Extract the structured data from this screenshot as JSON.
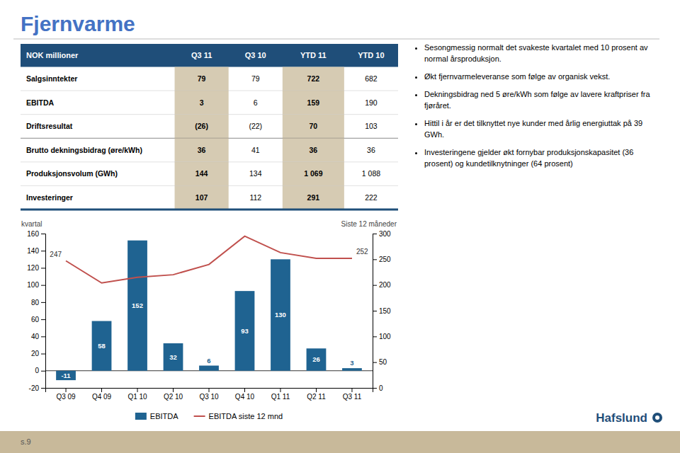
{
  "title": "Fjernvarme",
  "title_color": "#4472c4",
  "background_color": "#ffffff",
  "table": {
    "header_color": "#1F4E79",
    "header_text_color": "#ffffff",
    "shaded_color": "#C8B99A",
    "shaded_cols": [
      1,
      3
    ],
    "separator_after_row": 2,
    "col_headers": [
      "NOK millioner",
      "Q3 11",
      "Q3 10",
      "YTD 11",
      "YTD 10"
    ],
    "row_labels": [
      "Salgsinntekter",
      "EBITDA",
      "Driftsresultat",
      "Brutto dekningsbidrag (øre/kWh)",
      "Produksjonsvolum (GWh)",
      "Investeringer"
    ],
    "data": [
      [
        "79",
        "79",
        "722",
        "682"
      ],
      [
        "3",
        "6",
        "159",
        "190"
      ],
      [
        "(26)",
        "(22)",
        "70",
        "103"
      ],
      [
        "36",
        "41",
        "36",
        "36"
      ],
      [
        "144",
        "134",
        "1 069",
        "1 088"
      ],
      [
        "107",
        "112",
        "291",
        "222"
      ]
    ]
  },
  "bullet_points": [
    "Sesongmessig normalt det svakeste kvartalet med 10 prosent av normal årsproduksjon.",
    "Økt fjernvarmeleveranse som følge av organisk vekst.",
    "Dekningsbidrag ned 5 øre/kWh som følge av lavere kraftpriser fra fjøråret.",
    "Hittil i år er det tilknyttet nye kunder med årlig energiuttak på 39 GWh.",
    "Investeringene gjelder økt fornybar produksjonskapasitet (36 prosent) og kundetilknytninger (64 prosent)"
  ],
  "logo_text": "Hafslund",
  "logo_color": "#1F4E79",
  "footer_text": "s.9",
  "footer_color": "#C8B99A",
  "chart_data": {
    "type": "bar",
    "categories": [
      "Q3 09",
      "Q4 09",
      "Q1 10",
      "Q2 10",
      "Q3 10",
      "Q4 10",
      "Q1 11",
      "Q2 11",
      "Q3 11"
    ],
    "series": [
      {
        "name": "EBITDA",
        "type": "bar",
        "color": "#1F6391",
        "data_labels": true,
        "values": [
          -11,
          58,
          152,
          32,
          6,
          93,
          130,
          26,
          3
        ]
      },
      {
        "name": "EBITDA siste 12 mnd",
        "type": "line",
        "color": "#C0504D",
        "axis": "y2",
        "values": [
          247,
          204,
          215,
          220,
          240,
          295,
          263,
          252,
          252
        ]
      }
    ],
    "ylabel": "kvartal",
    "y2label": "Siste 12 måneder",
    "ylim": [
      -20,
      160
    ],
    "yticks": [
      -20,
      0,
      20,
      40,
      60,
      80,
      100,
      120,
      140,
      160
    ],
    "y2lim": [
      0,
      300
    ],
    "y2ticks": [
      0,
      50,
      100,
      150,
      200,
      250,
      300
    ],
    "legend": "bottom",
    "grid": false,
    "annotations": [
      {
        "text": "247",
        "x": "Q3 09",
        "y": 247,
        "axis": "y2"
      },
      {
        "text": "252",
        "x": "Q3 11",
        "y": 252,
        "axis": "y2"
      }
    ]
  }
}
